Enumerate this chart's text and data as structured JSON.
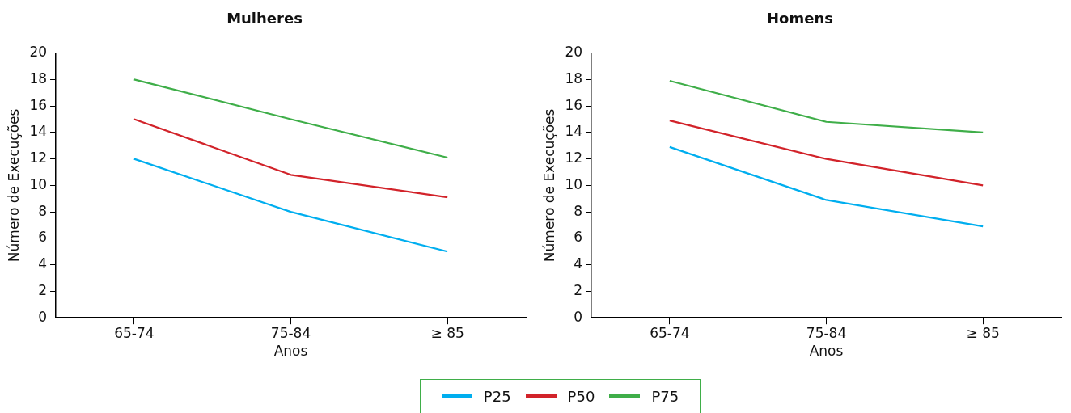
{
  "chart_data": [
    {
      "type": "line",
      "title": "Mulheres",
      "xlabel": "Anos",
      "ylabel": "Número de Execuções",
      "categories": [
        "65-74",
        "75-84",
        "≥ 85"
      ],
      "ylim": [
        0,
        20
      ],
      "yticks": [
        0,
        2,
        4,
        6,
        8,
        10,
        12,
        14,
        16,
        18,
        20
      ],
      "grid": false,
      "legend": "bottom",
      "marker": "none",
      "line_style": "solid",
      "series": [
        {
          "name": "P25",
          "color": "#00aeef",
          "values": [
            12,
            8,
            5
          ]
        },
        {
          "name": "P50",
          "color": "#d2232a",
          "values": [
            15,
            10.8,
            9.1
          ]
        },
        {
          "name": "P75",
          "color": "#3fae49",
          "values": [
            18,
            15,
            12.1
          ]
        }
      ]
    },
    {
      "type": "line",
      "title": "Homens",
      "xlabel": "Anos",
      "ylabel": "Número de Execuções",
      "categories": [
        "65-74",
        "75-84",
        "≥ 85"
      ],
      "ylim": [
        0,
        20
      ],
      "yticks": [
        0,
        2,
        4,
        6,
        8,
        10,
        12,
        14,
        16,
        18,
        20
      ],
      "grid": false,
      "legend": "bottom",
      "marker": "none",
      "line_style": "solid",
      "series": [
        {
          "name": "P25",
          "color": "#00aeef",
          "values": [
            12.9,
            8.9,
            6.9
          ]
        },
        {
          "name": "P50",
          "color": "#d2232a",
          "values": [
            14.9,
            12,
            10
          ]
        },
        {
          "name": "P75",
          "color": "#3fae49",
          "values": [
            17.9,
            14.8,
            14
          ]
        }
      ]
    }
  ]
}
